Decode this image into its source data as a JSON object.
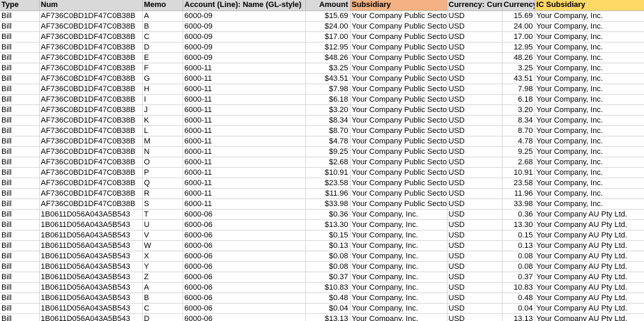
{
  "headers": [
    "Type",
    "Num",
    "Memo",
    "Account (Line): Name (GL-style)",
    "Amount",
    "Subsidiary",
    "Currency: Curren",
    "Currency",
    "IC Subsidiary"
  ],
  "header_colors": {
    "default": "#d9d9d9",
    "subsidiary": "#f4b183",
    "ic_subsidiary": "#ffd966"
  },
  "rows": [
    [
      "Bill",
      "AF736C0BD1DF47C0B38B",
      "A",
      "6000-09",
      "$15.69",
      "Your Company Public Sector",
      "USD",
      "15.69",
      "Your Company, Inc."
    ],
    [
      "Bill",
      "AF736C0BD1DF47C0B38B",
      "B",
      "6000-09",
      "$24.00",
      "Your Company Public Sector",
      "USD",
      "24.00",
      "Your Company, Inc."
    ],
    [
      "Bill",
      "AF736C0BD1DF47C0B38B",
      "C",
      "6000-09",
      "$17.00",
      "Your Company Public Sector",
      "USD",
      "17.00",
      "Your Company, Inc."
    ],
    [
      "Bill",
      "AF736C0BD1DF47C0B38B",
      "D",
      "6000-09",
      "$12.95",
      "Your Company Public Sector",
      "USD",
      "12.95",
      "Your Company, Inc."
    ],
    [
      "Bill",
      "AF736C0BD1DF47C0B38B",
      "E",
      "6000-09",
      "$48.26",
      "Your Company Public Sector",
      "USD",
      "48.26",
      "Your Company, Inc."
    ],
    [
      "Bill",
      "AF736C0BD1DF47C0B38B",
      "F",
      "6000-11",
      "$3.25",
      "Your Company Public Sector",
      "USD",
      "3.25",
      "Your Company, Inc."
    ],
    [
      "Bill",
      "AF736C0BD1DF47C0B38B",
      "G",
      "6000-11",
      "$43.51",
      "Your Company Public Sector",
      "USD",
      "43.51",
      "Your Company, Inc."
    ],
    [
      "Bill",
      "AF736C0BD1DF47C0B38B",
      "H",
      "6000-11",
      "$7.98",
      "Your Company Public Sector",
      "USD",
      "7.98",
      "Your Company, Inc."
    ],
    [
      "Bill",
      "AF736C0BD1DF47C0B38B",
      "I",
      "6000-11",
      "$6.18",
      "Your Company Public Sector",
      "USD",
      "6.18",
      "Your Company, Inc."
    ],
    [
      "Bill",
      "AF736C0BD1DF47C0B38B",
      "J",
      "6000-11",
      "$3.20",
      "Your Company Public Sector",
      "USD",
      "3.20",
      "Your Company, Inc."
    ],
    [
      "Bill",
      "AF736C0BD1DF47C0B38B",
      "K",
      "6000-11",
      "$8.34",
      "Your Company Public Sector",
      "USD",
      "8.34",
      "Your Company, Inc."
    ],
    [
      "Bill",
      "AF736C0BD1DF47C0B38B",
      "L",
      "6000-11",
      "$8.70",
      "Your Company Public Sector",
      "USD",
      "8.70",
      "Your Company, Inc."
    ],
    [
      "Bill",
      "AF736C0BD1DF47C0B38B",
      "M",
      "6000-11",
      "$4.78",
      "Your Company Public Sector",
      "USD",
      "4.78",
      "Your Company, Inc."
    ],
    [
      "Bill",
      "AF736C0BD1DF47C0B38B",
      "N",
      "6000-11",
      "$9.25",
      "Your Company Public Sector",
      "USD",
      "9.25",
      "Your Company, Inc."
    ],
    [
      "Bill",
      "AF736C0BD1DF47C0B38B",
      "O",
      "6000-11",
      "$2.68",
      "Your Company Public Sector",
      "USD",
      "2.68",
      "Your Company, Inc."
    ],
    [
      "Bill",
      "AF736C0BD1DF47C0B38B",
      "P",
      "6000-11",
      "$10.91",
      "Your Company Public Sector",
      "USD",
      "10.91",
      "Your Company, Inc."
    ],
    [
      "Bill",
      "AF736C0BD1DF47C0B38B",
      "Q",
      "6000-11",
      "$23.58",
      "Your Company Public Sector",
      "USD",
      "23.58",
      "Your Company, Inc."
    ],
    [
      "Bill",
      "AF736C0BD1DF47C0B38B",
      "R",
      "6000-11",
      "$11.96",
      "Your Company Public Sector",
      "USD",
      "11.96",
      "Your Company, Inc."
    ],
    [
      "Bill",
      "AF736C0BD1DF47C0B38B",
      "S",
      "6000-11",
      "$33.98",
      "Your Company Public Sector",
      "USD",
      "33.98",
      "Your Company, Inc."
    ],
    [
      "Bill",
      "1B0611D056A043A5B543",
      "T",
      "6000-06",
      "$0.36",
      "Your Company, Inc.",
      "USD",
      "0.36",
      "Your Company AU Pty Ltd."
    ],
    [
      "Bill",
      "1B0611D056A043A5B543",
      "U",
      "6000-06",
      "$13.30",
      "Your Company, Inc.",
      "USD",
      "13.30",
      "Your Company AU Pty Ltd."
    ],
    [
      "Bill",
      "1B0611D056A043A5B543",
      "V",
      "6000-06",
      "$0.15",
      "Your Company, Inc.",
      "USD",
      "0.15",
      "Your Company AU Pty Ltd."
    ],
    [
      "Bill",
      "1B0611D056A043A5B543",
      "W",
      "6000-06",
      "$0.13",
      "Your Company, Inc.",
      "USD",
      "0.13",
      "Your Company AU Pty Ltd."
    ],
    [
      "Bill",
      "1B0611D056A043A5B543",
      "X",
      "6000-06",
      "$0.08",
      "Your Company, Inc.",
      "USD",
      "0.08",
      "Your Company AU Pty Ltd."
    ],
    [
      "Bill",
      "1B0611D056A043A5B543",
      "Y",
      "6000-06",
      "$0.08",
      "Your Company, Inc.",
      "USD",
      "0.08",
      "Your Company AU Pty Ltd."
    ],
    [
      "Bill",
      "1B0611D056A043A5B543",
      "Z",
      "6000-06",
      "$0.37",
      "Your Company, Inc.",
      "USD",
      "0.37",
      "Your Company AU Pty Ltd."
    ],
    [
      "Bill",
      "1B0611D056A043A5B543",
      "A",
      "6000-06",
      "$10.83",
      "Your Company, Inc.",
      "USD",
      "10.83",
      "Your Company AU Pty Ltd."
    ],
    [
      "Bill",
      "1B0611D056A043A5B543",
      "B",
      "6000-06",
      "$0.48",
      "Your Company, Inc.",
      "USD",
      "0.48",
      "Your Company AU Pty Ltd."
    ],
    [
      "Bill",
      "1B0611D056A043A5B543",
      "C",
      "6000-06",
      "$0.04",
      "Your Company, Inc.",
      "USD",
      "0.04",
      "Your Company AU Pty Ltd."
    ],
    [
      "Bill",
      "1B0611D056A043A5B543",
      "D",
      "6000-06",
      "$13.13",
      "Your Company, Inc.",
      "USD",
      "13.13",
      "Your Company AU Pty Ltd."
    ]
  ]
}
